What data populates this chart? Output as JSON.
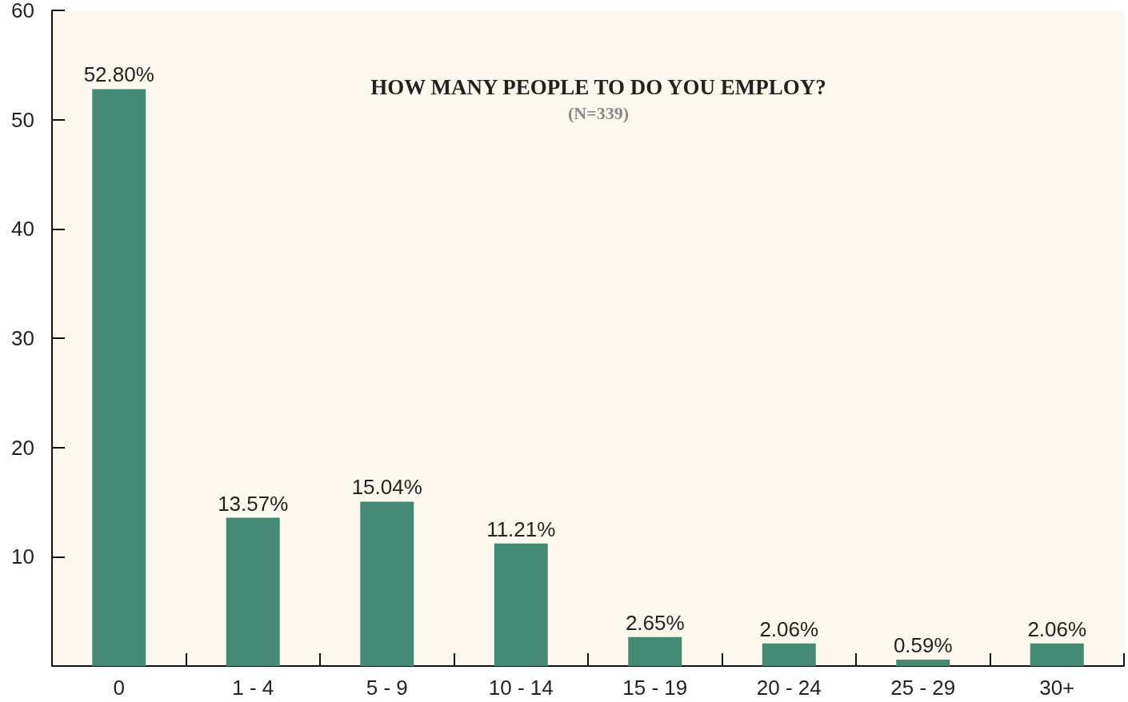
{
  "chart_data": {
    "type": "bar",
    "title": "HOW MANY PEOPLE TO DO YOU EMPLOY?",
    "subtitle": "(N=339)",
    "categories": [
      "0",
      "1 - 4",
      "5 - 9",
      "10 - 14",
      "15 - 19",
      "20 - 24",
      "25 - 29",
      "30+"
    ],
    "values": [
      52.8,
      13.57,
      15.04,
      11.21,
      2.65,
      2.06,
      0.59,
      2.06
    ],
    "value_labels": [
      "52.80%",
      "13.57%",
      "15.04%",
      "11.21%",
      "2.65%",
      "2.06%",
      "0.59%",
      "2.06%"
    ],
    "color": "#448a75",
    "ylim": [
      0,
      60
    ],
    "yticks": [
      {
        "value": 0,
        "label": null
      },
      10,
      20,
      30,
      40,
      50,
      60
    ],
    "grid": false
  }
}
